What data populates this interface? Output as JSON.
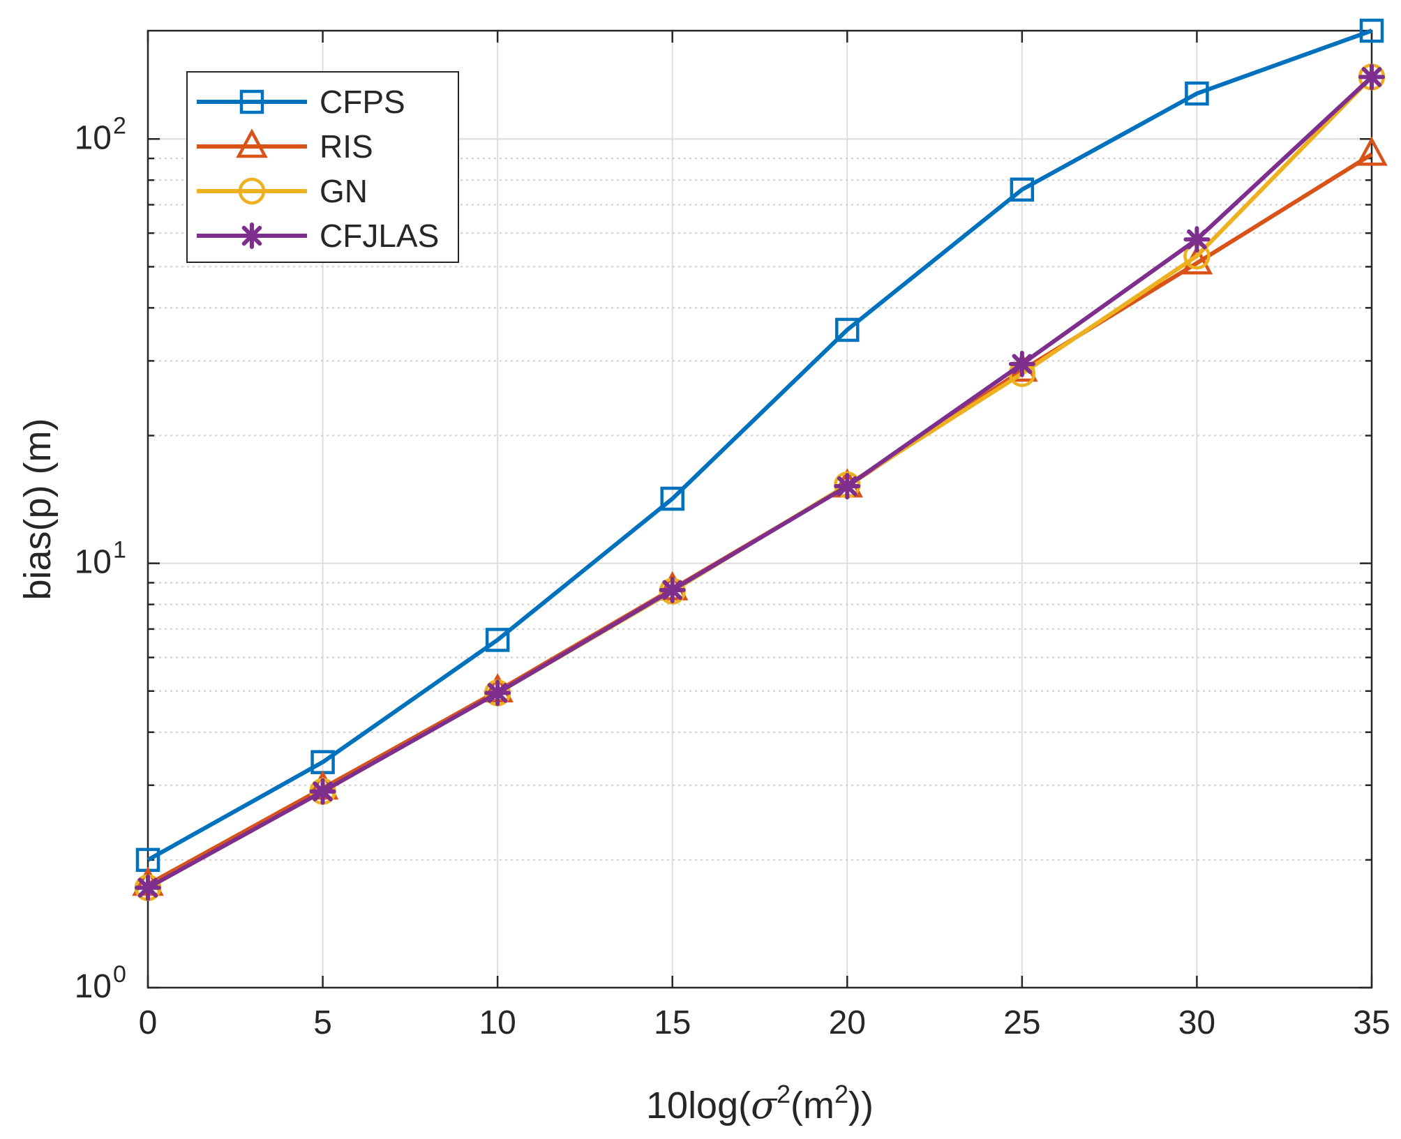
{
  "chart_data": {
    "type": "line",
    "title": "",
    "xlabel": "10log(σ²(m²))",
    "xlabel_parts": {
      "prefix": "10log(",
      "symbol": "σ",
      "sup1": "2",
      "mid": "(m",
      "sup2": "2",
      "suffix": "))"
    },
    "ylabel": "bias(p) (m)",
    "yscale": "log",
    "xlim": [
      0,
      35
    ],
    "ylim": [
      1,
      180
    ],
    "grid": true,
    "legend_position": "top-left",
    "x": [
      0,
      5,
      10,
      15,
      20,
      25,
      30,
      35
    ],
    "x_ticks": [
      0,
      5,
      10,
      15,
      20,
      25,
      30,
      35
    ],
    "x_tick_labels": [
      "0",
      "5",
      "10",
      "15",
      "20",
      "25",
      "30",
      "35"
    ],
    "y_ticks": [
      1,
      10,
      100
    ],
    "y_tick_labels": [
      {
        "base": "10",
        "exp": "0"
      },
      {
        "base": "10",
        "exp": "1"
      },
      {
        "base": "10",
        "exp": "2"
      }
    ],
    "series": [
      {
        "name": "CFPS",
        "color": "#0072BD",
        "marker": "square",
        "values": [
          2.0,
          3.4,
          6.6,
          14.2,
          35.5,
          76,
          128,
          180
        ]
      },
      {
        "name": "RIS",
        "color": "#D95319",
        "marker": "triangle",
        "values": [
          1.75,
          2.95,
          5.0,
          8.7,
          15.2,
          28.5,
          51,
          92
        ]
      },
      {
        "name": "GN",
        "color": "#EDB120",
        "marker": "circle",
        "values": [
          1.72,
          2.9,
          4.95,
          8.6,
          15.3,
          28.0,
          53,
          140
        ]
      },
      {
        "name": "CFJLAS",
        "color": "#7E2F8E",
        "marker": "asterisk",
        "values": [
          1.72,
          2.9,
          4.95,
          8.65,
          15.2,
          29.5,
          58,
          140
        ]
      }
    ]
  }
}
